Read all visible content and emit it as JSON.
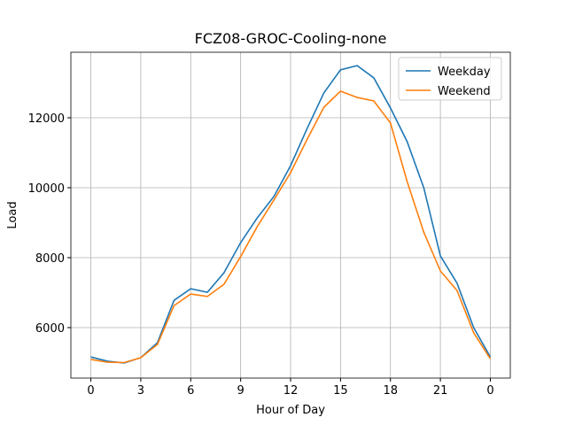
{
  "chart_data": {
    "type": "line",
    "title": "FCZ08-GROC-Cooling-none",
    "xlabel": "Hour of Day",
    "ylabel": "Load",
    "x": [
      0,
      1,
      2,
      3,
      4,
      5,
      6,
      7,
      8,
      9,
      10,
      11,
      12,
      13,
      14,
      15,
      16,
      17,
      18,
      19,
      20,
      21,
      22,
      23,
      24
    ],
    "series": [
      {
        "name": "Weekday",
        "color": "#1f77b4",
        "values": [
          5160,
          5040,
          4990,
          5140,
          5570,
          6780,
          7110,
          7010,
          7570,
          8430,
          9140,
          9750,
          10630,
          11700,
          12710,
          13370,
          13490,
          13140,
          12280,
          11320,
          10000,
          8050,
          7270,
          6000,
          5160
        ]
      },
      {
        "name": "Weekend",
        "color": "#ff7f0e",
        "values": [
          5090,
          5010,
          5000,
          5140,
          5520,
          6630,
          6960,
          6890,
          7240,
          8030,
          8890,
          9650,
          10430,
          11390,
          12300,
          12760,
          12580,
          12480,
          11850,
          10180,
          8730,
          7620,
          7060,
          5850,
          5110
        ]
      }
    ],
    "xlim": [
      -1.2,
      25.2
    ],
    "xticks": [
      0,
      3,
      6,
      9,
      12,
      15,
      18,
      21,
      {
        "value": 24,
        "label": "0"
      }
    ],
    "ylim": [
      4557,
      13873
    ],
    "yticks": [
      6000,
      8000,
      10000,
      12000
    ],
    "grid": true,
    "legend": "upper right"
  }
}
